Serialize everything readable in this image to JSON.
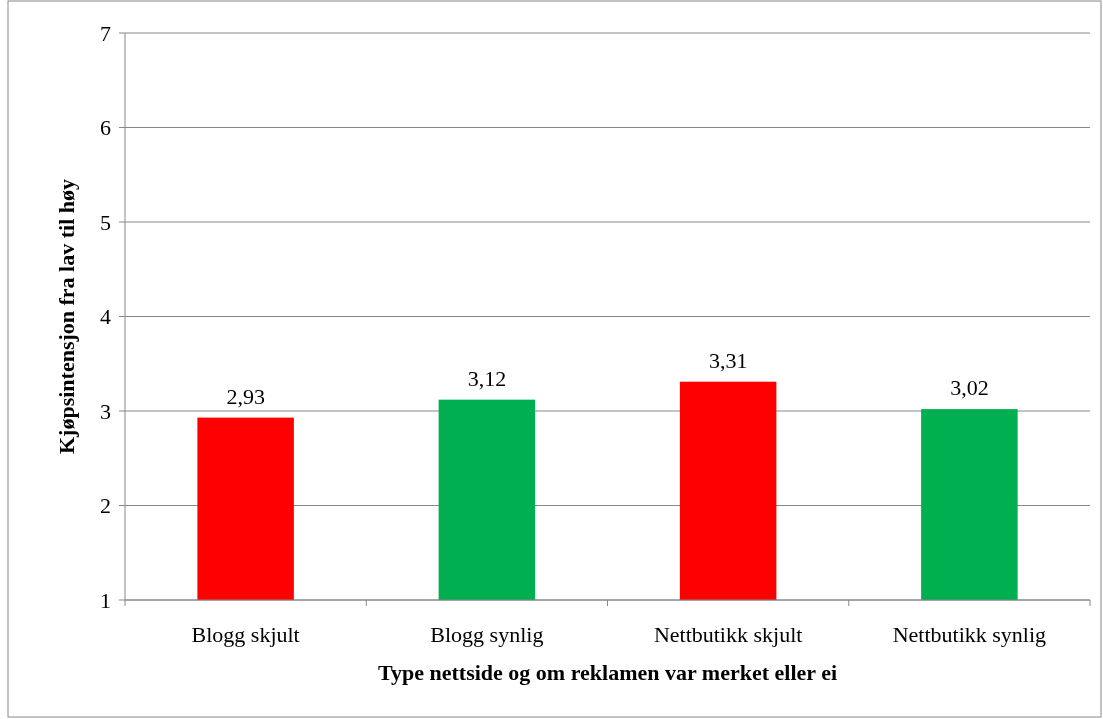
{
  "chart_data": {
    "type": "bar",
    "xlabel": "Type nettside og om reklamen var merket eller ei",
    "ylabel": "Kjøpsintensjon fra lav til høy",
    "categories": [
      "Blogg skjult",
      "Blogg synlig",
      "Nettbutikk skjult",
      "Nettbutikk synlig"
    ],
    "values": [
      2.93,
      3.12,
      3.31,
      3.02
    ],
    "colors": [
      "#ff0000",
      "#00b050",
      "#ff0000",
      "#00b050"
    ],
    "value_labels": [
      "2,93",
      "3,12",
      "3,31",
      "3,02"
    ],
    "ylim": [
      1,
      7
    ],
    "yticks": [
      1,
      2,
      3,
      4,
      5,
      6,
      7
    ],
    "grid": "y"
  }
}
